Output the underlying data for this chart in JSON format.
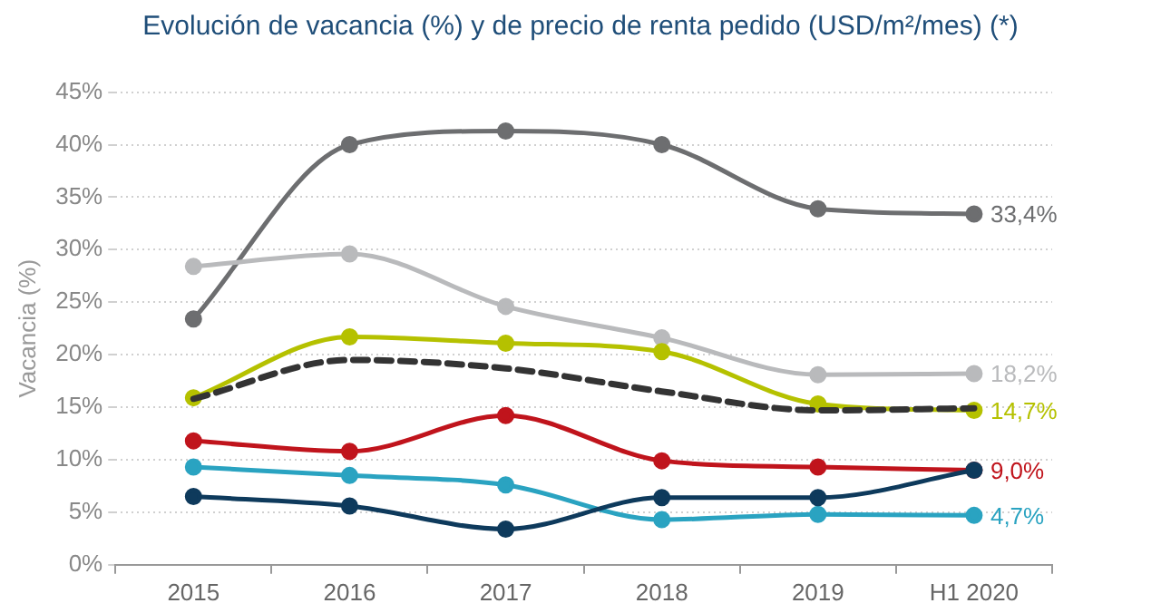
{
  "chart_data": {
    "type": "line",
    "title": "Evolución de vacancia (%) y de precio de renta pedido (USD/m²/mes) (*)",
    "ylabel": "Vacancia (%)",
    "categories": [
      "2015",
      "2016",
      "2017",
      "2018",
      "2019",
      "H1 2020"
    ],
    "series": [
      {
        "color": "#6d6e70",
        "values": [
          23.4,
          40.0,
          41.3,
          40.0,
          33.9,
          33.4
        ],
        "value_labels": [
          null,
          null,
          null,
          null,
          null,
          "33,4%"
        ]
      },
      {
        "color": "#b9babc",
        "values": [
          28.4,
          29.6,
          24.6,
          21.6,
          18.1,
          18.2
        ],
        "value_labels": [
          null,
          null,
          null,
          null,
          null,
          "18,2%"
        ]
      },
      {
        "color": "#b5c100",
        "values": [
          15.9,
          21.7,
          21.1,
          20.3,
          15.3,
          14.7
        ],
        "value_labels": [
          null,
          null,
          null,
          null,
          null,
          "14,7%"
        ]
      },
      {
        "color": "#333333",
        "line_style": "dashed",
        "marker": "none",
        "values": [
          15.8,
          19.5,
          18.7,
          16.5,
          14.7,
          14.9
        ]
      },
      {
        "color": "#c0141c",
        "values": [
          11.8,
          10.8,
          14.2,
          9.9,
          9.3,
          9.0
        ],
        "value_labels": [
          null,
          null,
          null,
          null,
          null,
          "9,0%"
        ]
      },
      {
        "color": "#2aa3c1",
        "values": [
          9.3,
          8.5,
          7.6,
          4.3,
          4.8,
          4.7
        ],
        "value_labels": [
          null,
          null,
          null,
          null,
          null,
          "4,7%"
        ]
      },
      {
        "color": "#0e3a5c",
        "values": [
          6.5,
          5.6,
          3.4,
          6.4,
          6.4,
          9.0
        ]
      }
    ],
    "ylim": [
      0,
      45
    ],
    "yticks": [
      {
        "value": 0,
        "label": "0%"
      },
      {
        "value": 5,
        "label": "5%"
      },
      {
        "value": 10,
        "label": "10%"
      },
      {
        "value": 15,
        "label": "15%"
      },
      {
        "value": 20,
        "label": "20%"
      },
      {
        "value": 25,
        "label": "25%"
      },
      {
        "value": 30,
        "label": "30%"
      },
      {
        "value": 35,
        "label": "35%"
      },
      {
        "value": 40,
        "label": "40%"
      },
      {
        "value": 45,
        "label": "45%"
      }
    ],
    "grid": "y",
    "legend": false,
    "marker": "circle",
    "line_style": "solid"
  }
}
